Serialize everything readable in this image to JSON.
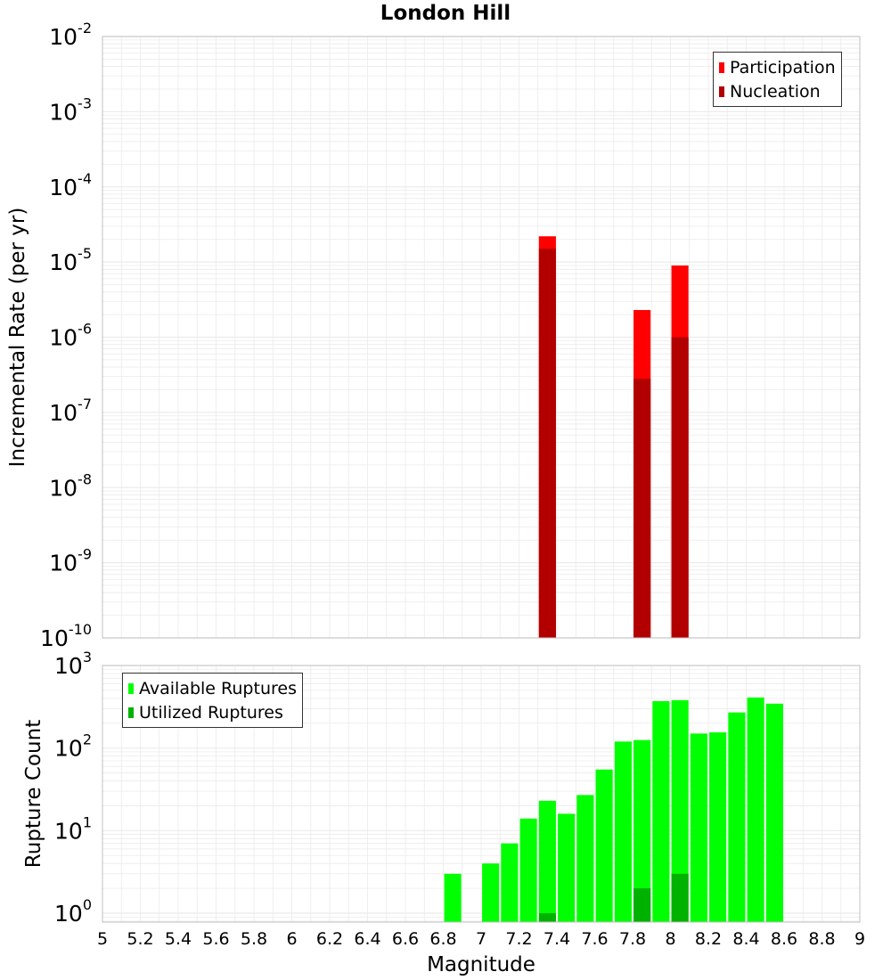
{
  "title": "London Hill",
  "colors": {
    "participation": "#ff0000",
    "nucleation": "#b20000",
    "available": "#00ff00",
    "utilized": "#00b200",
    "grid": "#ebebeb",
    "frame": "#c0c0c0"
  },
  "chart_data": [
    {
      "type": "bar",
      "name": "rate-panel",
      "ylabel": "Incremental Rate (per yr)",
      "yscale": "log",
      "ylim": [
        1e-10,
        0.01
      ],
      "xlim": [
        5,
        9
      ],
      "y_ticks": [
        {
          "base": "10",
          "exp": "-2",
          "value": 0.01
        },
        {
          "base": "10",
          "exp": "-3",
          "value": 0.001
        },
        {
          "base": "10",
          "exp": "-4",
          "value": 0.0001
        },
        {
          "base": "10",
          "exp": "-5",
          "value": 1e-05
        },
        {
          "base": "10",
          "exp": "-6",
          "value": 1e-06
        },
        {
          "base": "10",
          "exp": "-7",
          "value": 1e-07
        },
        {
          "base": "10",
          "exp": "-8",
          "value": 1e-08
        },
        {
          "base": "10",
          "exp": "-9",
          "value": 1e-09
        },
        {
          "base": "10",
          "exp": "-10",
          "value": 1e-10
        }
      ],
      "legend": [
        "Participation",
        "Nucleation"
      ],
      "legend_position": "top-right",
      "series": [
        {
          "name": "Participation",
          "x": [
            7.35,
            7.85,
            8.05
          ],
          "values": [
            2.2e-05,
            2.3e-06,
            9e-06
          ]
        },
        {
          "name": "Nucleation",
          "x": [
            7.35,
            7.85,
            8.05
          ],
          "values": [
            1.5e-05,
            2.8e-07,
            1e-06
          ]
        }
      ]
    },
    {
      "type": "bar",
      "name": "count-panel",
      "ylabel": "Rupture Count",
      "xlabel": "Magnitude",
      "yscale": "log",
      "ylim": [
        0.78,
        1000
      ],
      "xlim": [
        5,
        9
      ],
      "y_ticks": [
        {
          "base": "10",
          "exp": "3",
          "value": 1000
        },
        {
          "base": "10",
          "exp": "2",
          "value": 100
        },
        {
          "base": "10",
          "exp": "1",
          "value": 10
        },
        {
          "base": "10",
          "exp": "0",
          "value": 1
        }
      ],
      "x_ticks": [
        "5",
        "5.2",
        "5.4",
        "5.6",
        "5.8",
        "6",
        "6.2",
        "6.4",
        "6.6",
        "6.8",
        "7",
        "7.2",
        "7.4",
        "7.6",
        "7.8",
        "8",
        "8.2",
        "8.4",
        "8.6",
        "8.8",
        "9"
      ],
      "legend": [
        "Available Ruptures",
        "Utilized Ruptures"
      ],
      "legend_position": "top-left",
      "series": [
        {
          "name": "Available Ruptures",
          "x": [
            6.85,
            7.05,
            7.15,
            7.25,
            7.35,
            7.45,
            7.55,
            7.65,
            7.75,
            7.85,
            7.95,
            8.05,
            8.15,
            8.25,
            8.35,
            8.45,
            8.55
          ],
          "values": [
            3,
            4,
            7,
            14,
            23,
            16,
            27,
            55,
            120,
            125,
            370,
            380,
            150,
            155,
            270,
            410,
            345
          ]
        },
        {
          "name": "Utilized Ruptures",
          "x": [
            7.35,
            7.85,
            8.05
          ],
          "values": [
            1,
            2,
            3
          ]
        }
      ]
    }
  ]
}
